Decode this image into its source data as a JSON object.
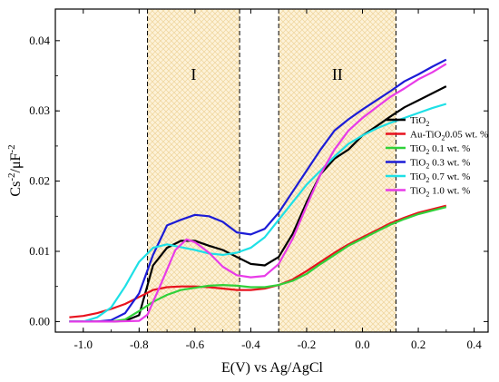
{
  "chart_data": {
    "type": "line",
    "xlabel": "E(V) vs Ag/AgCl",
    "ylabel": "Cs⁻²/μF⁻²",
    "xlim": [
      -1.1,
      0.45
    ],
    "ylim": [
      -0.0015,
      0.0445
    ],
    "x_ticks": [
      -1.0,
      -0.8,
      -0.6,
      -0.4,
      -0.2,
      0.0,
      0.2,
      0.4
    ],
    "x_tick_labels": [
      "-1.0",
      "-0.8",
      "-0.6",
      "-0.4",
      "-0.2",
      "0.0",
      "0.2",
      "0.4"
    ],
    "y_ticks": [
      0.0,
      0.01,
      0.02,
      0.03,
      0.04
    ],
    "y_tick_labels": [
      "0.00",
      "0.01",
      "0.02",
      "0.03",
      "0.04"
    ],
    "grid": false,
    "legend_position": "right",
    "regions": [
      {
        "label": "I",
        "x_start": -0.77,
        "x_end": -0.44,
        "fill": "#fdf1d5",
        "hatch": "#f0d9a3"
      },
      {
        "label": "II",
        "x_start": -0.3,
        "x_end": 0.12,
        "fill": "#fdf1d5",
        "hatch": "#f0d9a3"
      }
    ],
    "series": [
      {
        "name_main": "TiO",
        "name_sub": "2",
        "name_tail": "",
        "color": "#000000",
        "points": [
          [
            -1.05,
            0.0
          ],
          [
            -0.95,
            0.0
          ],
          [
            -0.9,
            0.0
          ],
          [
            -0.85,
            0.0001
          ],
          [
            -0.8,
            0.0009
          ],
          [
            -0.75,
            0.008
          ],
          [
            -0.7,
            0.0105
          ],
          [
            -0.65,
            0.0115
          ],
          [
            -0.6,
            0.0115
          ],
          [
            -0.55,
            0.0108
          ],
          [
            -0.5,
            0.0102
          ],
          [
            -0.45,
            0.0092
          ],
          [
            -0.4,
            0.0082
          ],
          [
            -0.35,
            0.008
          ],
          [
            -0.3,
            0.0092
          ],
          [
            -0.25,
            0.0125
          ],
          [
            -0.2,
            0.017
          ],
          [
            -0.15,
            0.021
          ],
          [
            -0.1,
            0.0232
          ],
          [
            -0.05,
            0.0245
          ],
          [
            0.0,
            0.0265
          ],
          [
            0.05,
            0.0278
          ],
          [
            0.1,
            0.0292
          ],
          [
            0.15,
            0.0305
          ],
          [
            0.2,
            0.0315
          ],
          [
            0.25,
            0.0325
          ],
          [
            0.3,
            0.0335
          ]
        ]
      },
      {
        "name_main": "Au-TiO",
        "name_sub": "2",
        "name_tail": "0.05 wt. %",
        "color": "#e8121e",
        "points": [
          [
            -1.05,
            0.0006
          ],
          [
            -1.0,
            0.0008
          ],
          [
            -0.95,
            0.0012
          ],
          [
            -0.9,
            0.0018
          ],
          [
            -0.85,
            0.0025
          ],
          [
            -0.8,
            0.0035
          ],
          [
            -0.75,
            0.0045
          ],
          [
            -0.7,
            0.0049
          ],
          [
            -0.65,
            0.005
          ],
          [
            -0.6,
            0.005
          ],
          [
            -0.55,
            0.0049
          ],
          [
            -0.5,
            0.0047
          ],
          [
            -0.45,
            0.0045
          ],
          [
            -0.4,
            0.0045
          ],
          [
            -0.35,
            0.0047
          ],
          [
            -0.3,
            0.0052
          ],
          [
            -0.25,
            0.006
          ],
          [
            -0.2,
            0.0072
          ],
          [
            -0.15,
            0.0085
          ],
          [
            -0.1,
            0.0098
          ],
          [
            -0.05,
            0.011
          ],
          [
            0.0,
            0.012
          ],
          [
            0.05,
            0.013
          ],
          [
            0.1,
            0.014
          ],
          [
            0.15,
            0.0148
          ],
          [
            0.2,
            0.0155
          ],
          [
            0.25,
            0.016
          ],
          [
            0.3,
            0.0165
          ]
        ]
      },
      {
        "name_main": "TiO",
        "name_sub": "2",
        "name_tail": " 0.1 wt. %",
        "color": "#30d13a",
        "points": [
          [
            -1.05,
            0.0
          ],
          [
            -0.9,
            0.0
          ],
          [
            -0.85,
            0.0003
          ],
          [
            -0.8,
            0.0015
          ],
          [
            -0.75,
            0.0028
          ],
          [
            -0.7,
            0.0038
          ],
          [
            -0.65,
            0.0045
          ],
          [
            -0.6,
            0.0048
          ],
          [
            -0.55,
            0.0051
          ],
          [
            -0.5,
            0.0052
          ],
          [
            -0.45,
            0.0051
          ],
          [
            -0.4,
            0.0049
          ],
          [
            -0.35,
            0.0049
          ],
          [
            -0.3,
            0.0052
          ],
          [
            -0.25,
            0.0058
          ],
          [
            -0.2,
            0.0068
          ],
          [
            -0.15,
            0.0082
          ],
          [
            -0.1,
            0.0095
          ],
          [
            -0.05,
            0.0108
          ],
          [
            0.0,
            0.0118
          ],
          [
            0.05,
            0.0128
          ],
          [
            0.1,
            0.0138
          ],
          [
            0.15,
            0.0146
          ],
          [
            0.2,
            0.0153
          ],
          [
            0.25,
            0.0158
          ],
          [
            0.3,
            0.0163
          ]
        ]
      },
      {
        "name_main": "TiO",
        "name_sub": "2",
        "name_tail": " 0.3 wt. %",
        "color": "#1c1cd6",
        "points": [
          [
            -1.05,
            0.0
          ],
          [
            -0.95,
            0.0
          ],
          [
            -0.9,
            0.0002
          ],
          [
            -0.85,
            0.0012
          ],
          [
            -0.8,
            0.004
          ],
          [
            -0.75,
            0.0095
          ],
          [
            -0.7,
            0.0137
          ],
          [
            -0.65,
            0.0145
          ],
          [
            -0.6,
            0.0152
          ],
          [
            -0.55,
            0.015
          ],
          [
            -0.5,
            0.0142
          ],
          [
            -0.45,
            0.0127
          ],
          [
            -0.4,
            0.0124
          ],
          [
            -0.35,
            0.0132
          ],
          [
            -0.3,
            0.0155
          ],
          [
            -0.25,
            0.0185
          ],
          [
            -0.2,
            0.0215
          ],
          [
            -0.15,
            0.0245
          ],
          [
            -0.1,
            0.0272
          ],
          [
            -0.05,
            0.0288
          ],
          [
            0.0,
            0.0302
          ],
          [
            0.05,
            0.0315
          ],
          [
            0.1,
            0.0328
          ],
          [
            0.15,
            0.0342
          ],
          [
            0.2,
            0.0352
          ],
          [
            0.25,
            0.0363
          ],
          [
            0.3,
            0.0373
          ]
        ]
      },
      {
        "name_main": "TiO",
        "name_sub": "2",
        "name_tail": " 0.7 wt. %",
        "color": "#1ee0e6",
        "points": [
          [
            -1.05,
            0.0
          ],
          [
            -1.0,
            0.0
          ],
          [
            -0.95,
            0.0006
          ],
          [
            -0.9,
            0.002
          ],
          [
            -0.85,
            0.005
          ],
          [
            -0.8,
            0.0085
          ],
          [
            -0.75,
            0.0105
          ],
          [
            -0.7,
            0.011
          ],
          [
            -0.65,
            0.0106
          ],
          [
            -0.6,
            0.0102
          ],
          [
            -0.55,
            0.0097
          ],
          [
            -0.5,
            0.0095
          ],
          [
            -0.45,
            0.0098
          ],
          [
            -0.4,
            0.0105
          ],
          [
            -0.35,
            0.012
          ],
          [
            -0.3,
            0.0145
          ],
          [
            -0.25,
            0.017
          ],
          [
            -0.2,
            0.0195
          ],
          [
            -0.15,
            0.0215
          ],
          [
            -0.1,
            0.0235
          ],
          [
            -0.05,
            0.0253
          ],
          [
            0.0,
            0.0265
          ],
          [
            0.05,
            0.0275
          ],
          [
            0.1,
            0.0283
          ],
          [
            0.15,
            0.029
          ],
          [
            0.2,
            0.0297
          ],
          [
            0.25,
            0.0304
          ],
          [
            0.3,
            0.031
          ]
        ]
      },
      {
        "name_main": "TiO",
        "name_sub": "2",
        "name_tail": " 1.0 wt. %",
        "color": "#e83be8",
        "points": [
          [
            -1.05,
            0.0
          ],
          [
            -0.9,
            0.0
          ],
          [
            -0.8,
            0.0001
          ],
          [
            -0.77,
            0.001
          ],
          [
            -0.72,
            0.0055
          ],
          [
            -0.67,
            0.0102
          ],
          [
            -0.63,
            0.0117
          ],
          [
            -0.6,
            0.0113
          ],
          [
            -0.55,
            0.0098
          ],
          [
            -0.5,
            0.0078
          ],
          [
            -0.45,
            0.0066
          ],
          [
            -0.4,
            0.0063
          ],
          [
            -0.35,
            0.0065
          ],
          [
            -0.3,
            0.0082
          ],
          [
            -0.25,
            0.0118
          ],
          [
            -0.2,
            0.0165
          ],
          [
            -0.15,
            0.021
          ],
          [
            -0.1,
            0.0245
          ],
          [
            -0.05,
            0.0272
          ],
          [
            0.0,
            0.029
          ],
          [
            0.05,
            0.0305
          ],
          [
            0.1,
            0.032
          ],
          [
            0.15,
            0.0332
          ],
          [
            0.2,
            0.0345
          ],
          [
            0.25,
            0.0355
          ],
          [
            0.3,
            0.0367
          ]
        ]
      }
    ]
  }
}
